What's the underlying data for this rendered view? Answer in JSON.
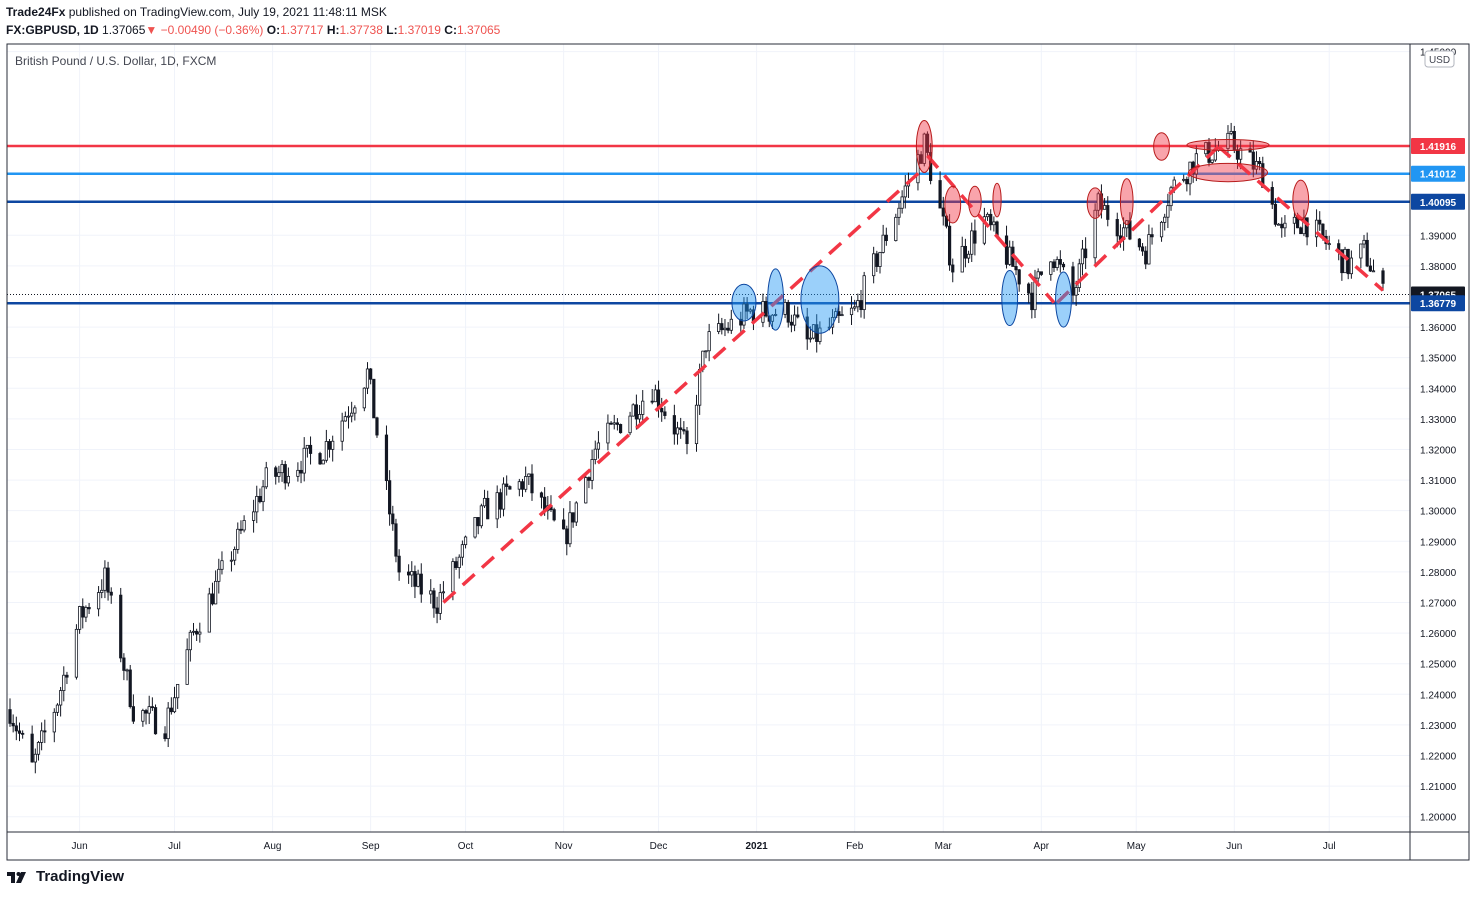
{
  "header": {
    "publisher": "Trade24Fx",
    "published_text": "published on TradingView.com, July 19, 2021 11:48:11 MSK",
    "symbol": "FX:GBPUSD, 1D",
    "last": "1.37065",
    "change": "−0.00490 (−0.36%)",
    "o_label": "O:",
    "o": "1.37717",
    "h_label": "H:",
    "h": "1.37738",
    "l_label": "L:",
    "l": "1.37019",
    "c_label": "C:",
    "c": "1.37065"
  },
  "footer": {
    "brand": "TradingView"
  },
  "chart_data": {
    "type": "candlestick",
    "title": "British Pound / U.S. Dollar, 1D, FXCM",
    "currency": "USD",
    "ylim": [
      1.195,
      1.4525
    ],
    "y_ticks": [
      "1.20000",
      "1.21000",
      "1.22000",
      "1.23000",
      "1.24000",
      "1.25000",
      "1.26000",
      "1.27000",
      "1.28000",
      "1.29000",
      "1.30000",
      "1.31000",
      "1.32000",
      "1.33000",
      "1.34000",
      "1.35000",
      "1.36000",
      "1.38000",
      "1.39000",
      "1.45000"
    ],
    "x_labels": [
      "Jun",
      "Jul",
      "Aug",
      "Sep",
      "Oct",
      "Nov",
      "Dec",
      "2021",
      "Feb",
      "Mar",
      "Apr",
      "May",
      "Jun",
      "Jul"
    ],
    "x_label_days": [
      22,
      52,
      83,
      114,
      144,
      175,
      205,
      236,
      267,
      295,
      326,
      356,
      387,
      417
    ],
    "bold_x_label": "2021",
    "first_day": "2020-05-11",
    "last_day": "2021-07-19",
    "grid": true,
    "colors": {
      "up": "#ffffff",
      "down": "#131722",
      "wick": "#131722",
      "bg": "#ffffff",
      "grid": "#f0f3fa",
      "text": "#131722"
    },
    "path": [
      [
        "2020-05-11",
        1.235
      ],
      [
        "2020-05-18",
        1.216
      ],
      [
        "2020-05-26",
        1.238
      ],
      [
        "2020-06-02",
        1.265
      ],
      [
        "2020-06-10",
        1.278
      ],
      [
        "2020-06-19",
        1.235
      ],
      [
        "2020-06-29",
        1.23
      ],
      [
        "2020-07-08",
        1.26
      ],
      [
        "2020-07-31",
        1.31
      ],
      [
        "2020-08-18",
        1.32
      ],
      [
        "2020-08-27",
        1.335
      ],
      [
        "2020-09-01",
        1.345
      ],
      [
        "2020-09-11",
        1.28
      ],
      [
        "2020-09-23",
        1.27
      ],
      [
        "2020-10-08",
        1.3
      ],
      [
        "2020-10-21",
        1.31
      ],
      [
        "2020-11-02",
        1.29
      ],
      [
        "2020-11-12",
        1.32
      ],
      [
        "2020-11-30",
        1.34
      ],
      [
        "2020-12-11",
        1.32
      ],
      [
        "2020-12-17",
        1.355
      ],
      [
        "2020-12-31",
        1.365
      ],
      [
        "2021-01-12",
        1.365
      ],
      [
        "2021-01-18",
        1.355
      ],
      [
        "2021-02-02",
        1.365
      ],
      [
        "2021-02-24",
        1.42
      ],
      [
        "2021-03-05",
        1.38
      ],
      [
        "2021-03-15",
        1.395
      ],
      [
        "2021-03-30",
        1.37
      ],
      [
        "2021-04-05",
        1.385
      ],
      [
        "2021-04-12",
        1.37
      ],
      [
        "2021-04-20",
        1.4
      ],
      [
        "2021-05-05",
        1.385
      ],
      [
        "2021-05-13",
        1.405
      ],
      [
        "2021-05-21",
        1.415
      ],
      [
        "2021-06-01",
        1.42
      ],
      [
        "2021-06-11",
        1.41
      ],
      [
        "2021-06-17",
        1.39
      ],
      [
        "2021-06-24",
        1.395
      ],
      [
        "2021-07-08",
        1.38
      ],
      [
        "2021-07-13",
        1.385
      ],
      [
        "2021-07-19",
        1.3706
      ]
    ],
    "horizontal_levels": [
      {
        "value": 1.41916,
        "label": "1.41916",
        "color": "#f23645"
      },
      {
        "value": 1.41012,
        "label": "1.41012",
        "color": "#2196f3"
      },
      {
        "value": 1.40095,
        "label": "1.40095",
        "color": "#0d47a1"
      },
      {
        "value": 1.37065,
        "label": "1.37065",
        "color": "#131722",
        "style": "dotted"
      },
      {
        "value": 1.36779,
        "label": "1.36779",
        "color": "#0d47a1"
      }
    ],
    "trend_lines": [
      {
        "from": [
          "2020-09-25",
          1.27
        ],
        "to": [
          "2021-02-24",
          1.412
        ],
        "color": "#f23645",
        "style": "dashed"
      },
      {
        "from": [
          "2021-02-25",
          1.416
        ],
        "to": [
          "2021-04-06",
          1.368
        ],
        "color": "#f23645",
        "style": "dashed"
      },
      {
        "from": [
          "2021-04-07",
          1.368
        ],
        "to": [
          "2021-05-28",
          1.419
        ],
        "color": "#f23645",
        "style": "dashed"
      },
      {
        "from": [
          "2021-05-28",
          1.419
        ],
        "to": [
          "2021-07-19",
          1.372
        ],
        "color": "#f23645",
        "style": "dashed"
      }
    ],
    "markers": [
      {
        "date": "2021-02-24",
        "value": 1.419,
        "w": 2.5,
        "h": 0.0085,
        "type": "resistance"
      },
      {
        "date": "2021-03-05",
        "value": 1.4,
        "w": 2.5,
        "h": 0.006,
        "type": "resistance"
      },
      {
        "date": "2021-03-12",
        "value": 1.401,
        "w": 2.0,
        "h": 0.005,
        "type": "resistance"
      },
      {
        "date": "2021-03-19",
        "value": 1.4015,
        "w": 1.3,
        "h": 0.0055,
        "type": "resistance"
      },
      {
        "date": "2021-04-19",
        "value": 1.4005,
        "w": 2.5,
        "h": 0.005,
        "type": "resistance"
      },
      {
        "date": "2021-04-29",
        "value": 1.401,
        "w": 2.0,
        "h": 0.0075,
        "type": "resistance"
      },
      {
        "date": "2021-05-10",
        "value": 1.419,
        "w": 2.5,
        "h": 0.0045,
        "type": "resistance"
      },
      {
        "date": "2021-05-31",
        "value": 1.4195,
        "w": 13.0,
        "h": 0.0018,
        "type": "resistance"
      },
      {
        "date": "2021-05-31",
        "value": 1.4105,
        "w": 12.5,
        "h": 0.003,
        "type": "resistance"
      },
      {
        "date": "2021-06-23",
        "value": 1.4015,
        "w": 2.5,
        "h": 0.0065,
        "type": "resistance"
      },
      {
        "date": "2020-12-29",
        "value": 1.368,
        "w": 3.8,
        "h": 0.006,
        "type": "support"
      },
      {
        "date": "2021-01-08",
        "value": 1.369,
        "w": 2.5,
        "h": 0.01,
        "type": "support"
      },
      {
        "date": "2021-01-22",
        "value": 1.369,
        "w": 6.0,
        "h": 0.011,
        "type": "support"
      },
      {
        "date": "2021-03-23",
        "value": 1.3695,
        "w": 2.5,
        "h": 0.009,
        "type": "support"
      },
      {
        "date": "2021-04-09",
        "value": 1.369,
        "w": 2.5,
        "h": 0.009,
        "type": "support"
      }
    ]
  }
}
